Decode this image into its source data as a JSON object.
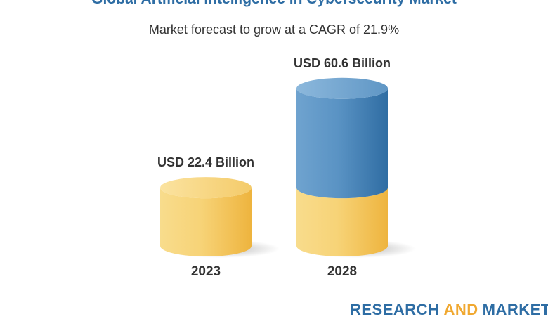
{
  "header": {
    "title": "Global Artificial Intelligence in Cybersecurity Market",
    "subtitle": "Market forecast to grow at a CAGR of 21.9%"
  },
  "brand": {
    "part1": "RESEARCH",
    "part2": "AND",
    "part3": "MARKETS"
  },
  "colors": {
    "title": "#2e6da4",
    "base_gold": "#f5c55a",
    "growth_blue": "#4f8cc0"
  },
  "chart_data": {
    "type": "bar",
    "title": "Global Artificial Intelligence in Cybersecurity Market",
    "subtitle": "Market forecast to grow at a CAGR of 21.9%",
    "categories": [
      "2023",
      "2028"
    ],
    "values": [
      22.4,
      60.6
    ],
    "value_labels": [
      "USD 22.4 Billion",
      "USD 60.6 Billion"
    ],
    "unit": "USD Billion",
    "style": "3D cylinders; 2028 cylinder has gold base segment equal to 2023 value with blue growth segment on top",
    "grid": false
  }
}
